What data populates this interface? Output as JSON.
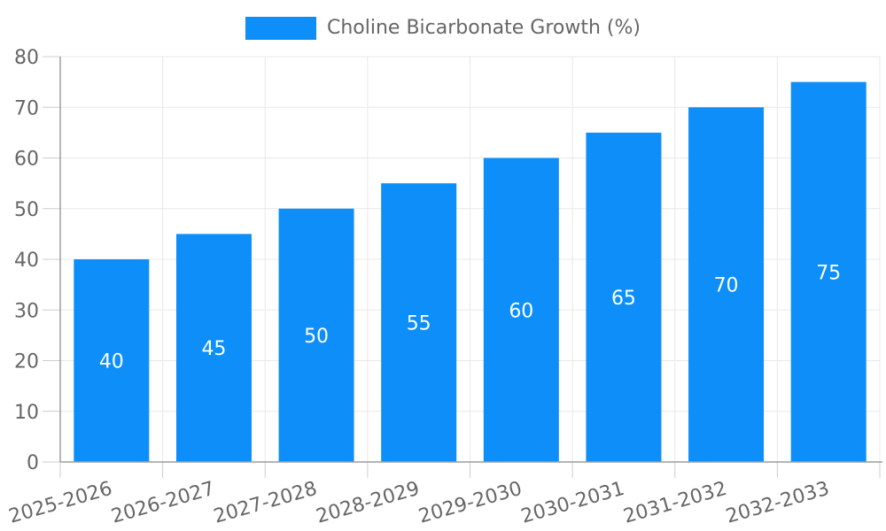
{
  "chart_data": {
    "type": "bar",
    "title": "Choline Bicarbonate Growth (%)",
    "legend_entries": [
      "Choline Bicarbonate Growth (%)"
    ],
    "legend_position": "top-center",
    "categories": [
      "2025-2026",
      "2026-2027",
      "2027-2028",
      "2028-2029",
      "2029-2030",
      "2030-2031",
      "2031-2032",
      "2032-2033"
    ],
    "values": [
      40,
      45,
      50,
      55,
      60,
      65,
      70,
      75
    ],
    "bar_value_labels": [
      "40",
      "45",
      "50",
      "55",
      "60",
      "65",
      "70",
      "75"
    ],
    "xlabel": "",
    "ylabel": "",
    "ylim": [
      0,
      80
    ],
    "yticks": [
      0,
      10,
      20,
      30,
      40,
      50,
      60,
      70,
      80
    ],
    "grid": true,
    "x_label_rotation_deg": -16,
    "colors": {
      "bar": "#0d8ef8",
      "bar_label_text": "#ffffff",
      "axis_text": "#666666",
      "legend_text": "#666666",
      "grid_line": "#e8e8e8",
      "tick": "#cccccc",
      "axis_line": "#9e9e9e",
      "background": "#ffffff"
    }
  }
}
